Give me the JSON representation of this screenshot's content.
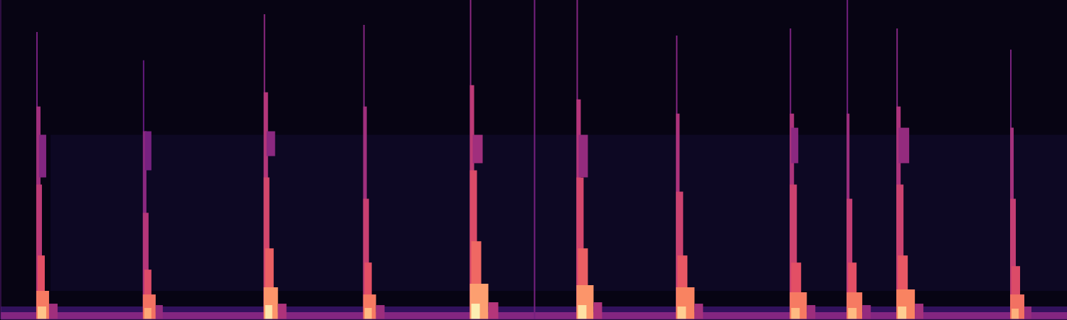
{
  "chart_data": {
    "type": "heatmap",
    "tick_labels": false,
    "xlim": [
      0,
      1500
    ],
    "ylim": [
      0,
      450
    ],
    "zlim": [
      0,
      100
    ],
    "cells": [
      [
        0,
        1500,
        0,
        450,
        3
      ],
      [
        70,
        1500,
        40,
        260,
        6
      ],
      [
        0,
        1500,
        0,
        10,
        38
      ],
      [
        0,
        1500,
        10,
        18,
        18
      ],
      [
        50,
        52,
        0,
        405,
        35
      ],
      [
        50,
        56,
        0,
        300,
        45
      ],
      [
        50,
        58,
        0,
        190,
        52
      ],
      [
        52,
        62,
        0,
        90,
        62
      ],
      [
        50,
        68,
        0,
        40,
        72
      ],
      [
        52,
        64,
        0,
        18,
        88
      ],
      [
        68,
        80,
        0,
        22,
        45
      ],
      [
        54,
        64,
        200,
        260,
        38
      ],
      [
        200,
        202,
        0,
        365,
        30
      ],
      [
        200,
        205,
        0,
        265,
        40
      ],
      [
        200,
        208,
        0,
        150,
        50
      ],
      [
        202,
        212,
        0,
        70,
        60
      ],
      [
        200,
        218,
        0,
        35,
        70
      ],
      [
        202,
        212,
        0,
        16,
        82
      ],
      [
        218,
        228,
        0,
        20,
        42
      ],
      [
        203,
        212,
        210,
        265,
        35
      ],
      [
        370,
        372,
        0,
        430,
        40
      ],
      [
        370,
        376,
        0,
        320,
        50
      ],
      [
        370,
        378,
        0,
        200,
        58
      ],
      [
        372,
        384,
        0,
        100,
        66
      ],
      [
        370,
        390,
        0,
        45,
        78
      ],
      [
        372,
        382,
        0,
        20,
        95
      ],
      [
        390,
        402,
        0,
        22,
        48
      ],
      [
        374,
        386,
        230,
        265,
        40
      ],
      [
        510,
        512,
        0,
        415,
        38
      ],
      [
        510,
        515,
        0,
        300,
        45
      ],
      [
        510,
        518,
        0,
        170,
        55
      ],
      [
        512,
        522,
        0,
        80,
        62
      ],
      [
        510,
        528,
        0,
        35,
        72
      ],
      [
        512,
        522,
        0,
        16,
        86
      ],
      [
        528,
        540,
        0,
        20,
        44
      ],
      [
        660,
        662,
        0,
        450,
        40
      ],
      [
        660,
        666,
        0,
        330,
        52
      ],
      [
        660,
        670,
        0,
        210,
        60
      ],
      [
        662,
        676,
        0,
        110,
        68
      ],
      [
        660,
        686,
        0,
        50,
        80
      ],
      [
        662,
        674,
        0,
        22,
        97
      ],
      [
        686,
        700,
        0,
        24,
        50
      ],
      [
        664,
        678,
        220,
        260,
        45
      ],
      [
        750,
        752,
        0,
        450,
        35
      ],
      [
        810,
        812,
        0,
        450,
        38
      ],
      [
        810,
        816,
        0,
        310,
        50
      ],
      [
        810,
        820,
        0,
        200,
        58
      ],
      [
        812,
        826,
        0,
        100,
        66
      ],
      [
        810,
        834,
        0,
        48,
        78
      ],
      [
        812,
        824,
        0,
        20,
        94
      ],
      [
        834,
        846,
        0,
        24,
        48
      ],
      [
        813,
        826,
        200,
        260,
        42
      ],
      [
        950,
        952,
        0,
        400,
        38
      ],
      [
        950,
        955,
        0,
        290,
        48
      ],
      [
        950,
        960,
        0,
        180,
        56
      ],
      [
        952,
        966,
        0,
        90,
        64
      ],
      [
        950,
        976,
        0,
        45,
        74
      ],
      [
        952,
        964,
        0,
        18,
        90
      ],
      [
        976,
        988,
        0,
        22,
        46
      ],
      [
        1110,
        1112,
        0,
        410,
        36
      ],
      [
        1110,
        1116,
        0,
        290,
        48
      ],
      [
        1110,
        1120,
        0,
        190,
        56
      ],
      [
        1112,
        1126,
        0,
        80,
        62
      ],
      [
        1110,
        1134,
        0,
        38,
        72
      ],
      [
        1112,
        1124,
        0,
        16,
        86
      ],
      [
        1134,
        1146,
        0,
        20,
        44
      ],
      [
        1112,
        1122,
        220,
        270,
        40
      ],
      [
        1190,
        1192,
        0,
        450,
        34
      ],
      [
        1190,
        1194,
        0,
        290,
        44
      ],
      [
        1190,
        1198,
        0,
        170,
        54
      ],
      [
        1192,
        1204,
        0,
        80,
        62
      ],
      [
        1190,
        1212,
        0,
        38,
        72
      ],
      [
        1192,
        1204,
        0,
        16,
        86
      ],
      [
        1212,
        1224,
        0,
        20,
        42
      ],
      [
        1260,
        1262,
        0,
        410,
        38
      ],
      [
        1260,
        1266,
        0,
        300,
        48
      ],
      [
        1260,
        1270,
        0,
        190,
        56
      ],
      [
        1262,
        1276,
        0,
        90,
        64
      ],
      [
        1260,
        1286,
        0,
        42,
        74
      ],
      [
        1262,
        1274,
        0,
        18,
        90
      ],
      [
        1286,
        1298,
        0,
        22,
        46
      ],
      [
        1263,
        1278,
        220,
        270,
        42
      ],
      [
        1420,
        1422,
        0,
        380,
        36
      ],
      [
        1420,
        1425,
        0,
        270,
        46
      ],
      [
        1420,
        1428,
        0,
        170,
        54
      ],
      [
        1422,
        1434,
        0,
        75,
        60
      ],
      [
        1420,
        1440,
        0,
        35,
        70
      ],
      [
        1422,
        1432,
        0,
        15,
        84
      ],
      [
        1440,
        1450,
        0,
        18,
        42
      ]
    ]
  }
}
